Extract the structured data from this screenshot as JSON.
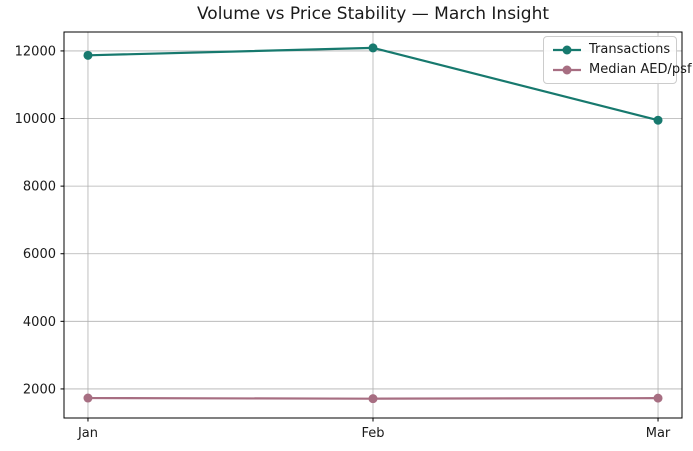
{
  "chart_data": {
    "type": "line",
    "title": "Volume vs Price Stability — March Insight",
    "categories": [
      "Jan",
      "Feb",
      "Mar"
    ],
    "series": [
      {
        "name": "Transactions",
        "color": "#17796e",
        "values": [
          11870,
          12090,
          9950
        ]
      },
      {
        "name": "Median AED/psf",
        "color": "#a76e82",
        "values": [
          1730,
          1712,
          1728
        ]
      }
    ],
    "yticks": [
      2000,
      4000,
      6000,
      8000,
      10000,
      12000
    ],
    "ylim": [
      1140,
      12560
    ],
    "xlabel": "",
    "ylabel": "",
    "grid": true,
    "grid_color": "#b0b0b0",
    "frame_color": "#000000",
    "legend_position": "upper right"
  }
}
